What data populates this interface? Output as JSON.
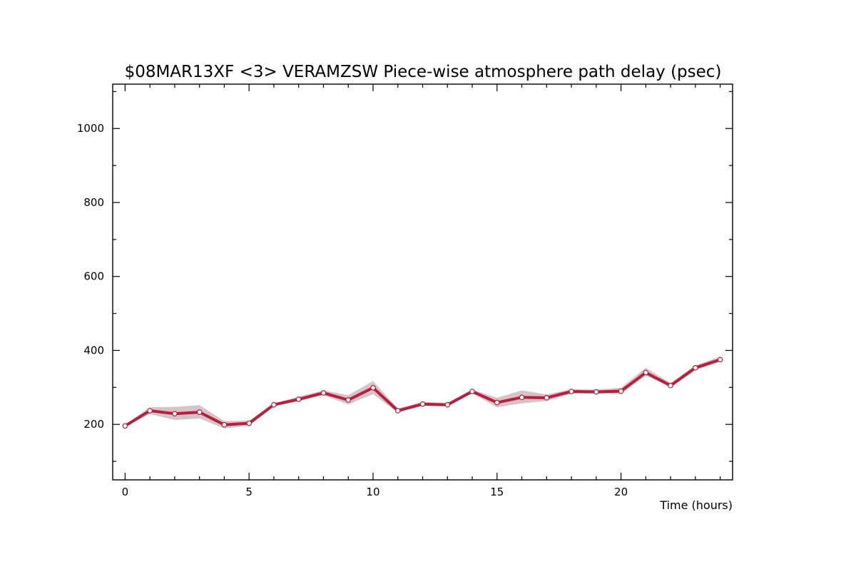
{
  "chart_data": {
    "type": "line",
    "title": "$08MAR13XF <3>  VERAMZSW  Piece-wise atmosphere path delay (psec)",
    "xlabel": "Time (hours)",
    "ylabel": "",
    "xlim": [
      -0.5,
      24.5
    ],
    "ylim": [
      50,
      1120
    ],
    "x_ticks_major": [
      0,
      5,
      10,
      15,
      20
    ],
    "x_ticks_minor": [
      1,
      2,
      3,
      4,
      6,
      7,
      8,
      9,
      11,
      12,
      13,
      14,
      16,
      17,
      18,
      19,
      21,
      22,
      23,
      24
    ],
    "y_ticks_major": [
      200,
      400,
      600,
      800,
      1000
    ],
    "y_ticks_minor": [
      100,
      300,
      500,
      700,
      900,
      1100
    ],
    "grid": false,
    "colors": {
      "line": "#b5203f",
      "band": "#d7c3c6",
      "marker_fill": "#ffffff"
    },
    "series": [
      {
        "x": [
          0,
          1,
          2,
          3,
          4,
          5,
          6,
          7,
          8,
          9,
          10,
          11,
          12,
          13,
          14,
          15,
          16,
          17,
          18,
          19,
          20,
          21,
          22,
          23,
          24
        ],
        "values": [
          196,
          237,
          229,
          233,
          199,
          203,
          253,
          268,
          285,
          266,
          299,
          237,
          255,
          253,
          289,
          259,
          273,
          272,
          289,
          288,
          290,
          340,
          305,
          353,
          375
        ],
        "lower": [
          194,
          228,
          212,
          216,
          189,
          196,
          249,
          262,
          279,
          254,
          282,
          232,
          250,
          249,
          284,
          246,
          257,
          263,
          283,
          283,
          282,
          332,
          300,
          346,
          369
        ],
        "upper": [
          199,
          246,
          247,
          252,
          209,
          210,
          257,
          275,
          292,
          279,
          317,
          243,
          261,
          258,
          294,
          272,
          292,
          281,
          295,
          294,
          299,
          353,
          312,
          360,
          383
        ]
      }
    ]
  }
}
